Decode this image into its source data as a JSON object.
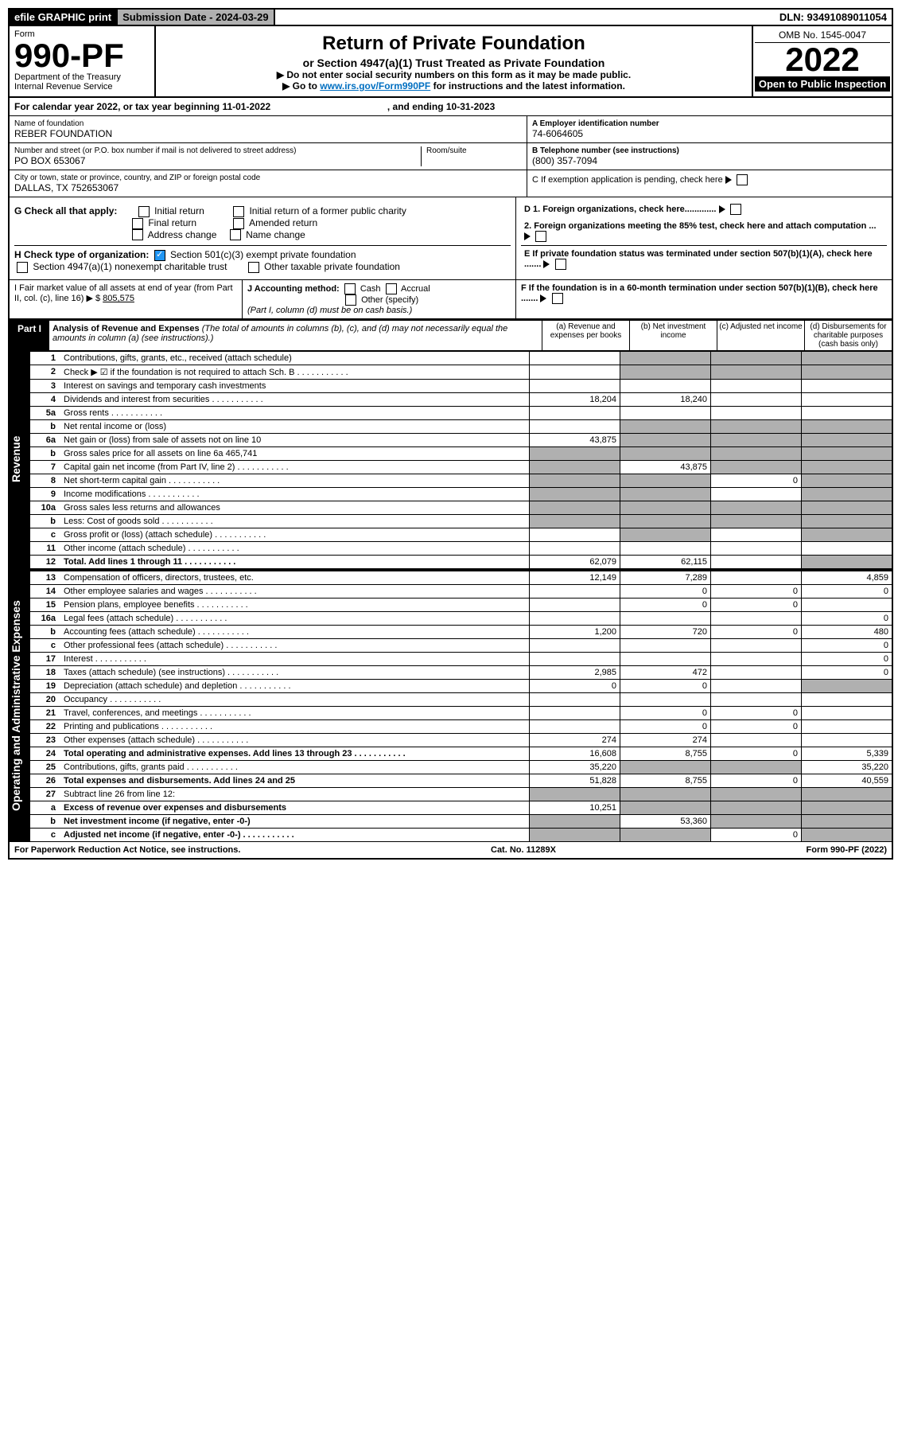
{
  "topbar": {
    "efile": "efile GRAPHIC print",
    "subdate": "Submission Date - 2024-03-29",
    "dln": "DLN: 93491089011054"
  },
  "header": {
    "form": "Form",
    "num": "990-PF",
    "dept": "Department of the Treasury",
    "irs": "Internal Revenue Service",
    "title": "Return of Private Foundation",
    "sub1": "or Section 4947(a)(1) Trust Treated as Private Foundation",
    "sub2": "▶ Do not enter social security numbers on this form as it may be made public.",
    "sub3": "▶ Go to ",
    "link": "www.irs.gov/Form990PF",
    "sub3b": " for instructions and the latest information.",
    "omb": "OMB No. 1545-0047",
    "year": "2022",
    "inspect": "Open to Public Inspection"
  },
  "ty": {
    "pre": "For calendar year 2022, or tax year beginning ",
    "begin": "11-01-2022",
    "mid": ", and ending ",
    "end": "10-31-2023"
  },
  "foundation": {
    "namelbl": "Name of foundation",
    "name": "REBER FOUNDATION",
    "addrlbl": "Number and street (or P.O. box number if mail is not delivered to street address)",
    "roomlbl": "Room/suite",
    "addr": "PO BOX 653067",
    "citylbl": "City or town, state or province, country, and ZIP or foreign postal code",
    "city": "DALLAS, TX  752653067",
    "einlbl": "A Employer identification number",
    "ein": "74-6064605",
    "tellbl": "B Telephone number (see instructions)",
    "tel": "(800) 357-7094",
    "clbl": "C If exemption application is pending, check here",
    "d1": "D 1. Foreign organizations, check here.............",
    "d2": "2. Foreign organizations meeting the 85% test, check here and attach computation ...",
    "e": "E If private foundation status was terminated under section 507(b)(1)(A), check here .......",
    "f": "F If the foundation is in a 60-month termination under section 507(b)(1)(B), check here ......."
  },
  "g": {
    "lbl": "G Check all that apply:",
    "opts": [
      "Initial return",
      "Initial return of a former public charity",
      "Final return",
      "Amended return",
      "Address change",
      "Name change"
    ]
  },
  "h": {
    "lbl": "H Check type of organization:",
    "o1": "Section 501(c)(3) exempt private foundation",
    "o2": "Section 4947(a)(1) nonexempt charitable trust",
    "o3": "Other taxable private foundation"
  },
  "i": {
    "lbl": "I Fair market value of all assets at end of year (from Part II, col. (c), line 16) ▶ $",
    "val": "805,575"
  },
  "j": {
    "lbl": "J Accounting method:",
    "o1": "Cash",
    "o2": "Accrual",
    "o3": "Other (specify)",
    "note": "(Part I, column (d) must be on cash basis.)"
  },
  "part1": {
    "hdr": "Part I",
    "title": "Analysis of Revenue and Expenses",
    "sub": "(The total of amounts in columns (b), (c), and (d) may not necessarily equal the amounts in column (a) (see instructions).)",
    "cols": [
      "(a) Revenue and expenses per books",
      "(b) Net investment income",
      "(c) Adjusted net income",
      "(d) Disbursements for charitable purposes (cash basis only)"
    ]
  },
  "sidelabels": {
    "rev": "Revenue",
    "exp": "Operating and Administrative Expenses"
  },
  "rows": [
    {
      "n": "1",
      "d": "Contributions, gifts, grants, etc., received (attach schedule)",
      "a": "",
      "b": "g",
      "c": "g",
      "e": "g"
    },
    {
      "n": "2",
      "d": "Check ▶ ☑ if the foundation is not required to attach Sch. B",
      "dots": 1,
      "b": "g",
      "c": "g",
      "e": "g"
    },
    {
      "n": "3",
      "d": "Interest on savings and temporary cash investments"
    },
    {
      "n": "4",
      "d": "Dividends and interest from securities",
      "dots": 1,
      "a": "18,204",
      "b": "18,240"
    },
    {
      "n": "5a",
      "d": "Gross rents",
      "dots": 1
    },
    {
      "n": "b",
      "d": "Net rental income or (loss)",
      "b": "g",
      "c": "g",
      "e": "g"
    },
    {
      "n": "6a",
      "d": "Net gain or (loss) from sale of assets not on line 10",
      "a": "43,875",
      "b": "g",
      "c": "g",
      "e": "g"
    },
    {
      "n": "b",
      "d": "Gross sales price for all assets on line 6a              465,741",
      "a": "g",
      "b": "g",
      "c": "g",
      "e": "g"
    },
    {
      "n": "7",
      "d": "Capital gain net income (from Part IV, line 2)",
      "dots": 1,
      "a": "g",
      "b": "43,875",
      "c": "g",
      "e": "g"
    },
    {
      "n": "8",
      "d": "Net short-term capital gain",
      "dots": 1,
      "a": "g",
      "b": "g",
      "c": "0",
      "e": "g"
    },
    {
      "n": "9",
      "d": "Income modifications",
      "dots": 1,
      "a": "g",
      "b": "g",
      "e": "g"
    },
    {
      "n": "10a",
      "d": "Gross sales less returns and allowances",
      "a": "g",
      "b": "g",
      "c": "g",
      "e": "g"
    },
    {
      "n": "b",
      "d": "Less: Cost of goods sold",
      "dots": 1,
      "a": "g",
      "b": "g",
      "c": "g",
      "e": "g"
    },
    {
      "n": "c",
      "d": "Gross profit or (loss) (attach schedule)",
      "dots": 1,
      "b": "g",
      "e": "g"
    },
    {
      "n": "11",
      "d": "Other income (attach schedule)",
      "dots": 1
    },
    {
      "n": "12",
      "d": "Total. Add lines 1 through 11",
      "dots": 1,
      "bold": 1,
      "a": "62,079",
      "b": "62,115",
      "e": "g"
    }
  ],
  "exprows": [
    {
      "n": "13",
      "d": "Compensation of officers, directors, trustees, etc.",
      "a": "12,149",
      "b": "7,289",
      "e": "4,859"
    },
    {
      "n": "14",
      "d": "Other employee salaries and wages",
      "dots": 1,
      "b": "0",
      "c": "0",
      "e": "0"
    },
    {
      "n": "15",
      "d": "Pension plans, employee benefits",
      "dots": 1,
      "b": "0",
      "c": "0"
    },
    {
      "n": "16a",
      "d": "Legal fees (attach schedule)",
      "dots": 1,
      "e": "0"
    },
    {
      "n": "b",
      "d": "Accounting fees (attach schedule)",
      "dots": 1,
      "a": "1,200",
      "b": "720",
      "c": "0",
      "e": "480"
    },
    {
      "n": "c",
      "d": "Other professional fees (attach schedule)",
      "dots": 1,
      "e": "0"
    },
    {
      "n": "17",
      "d": "Interest",
      "dots": 1,
      "e": "0"
    },
    {
      "n": "18",
      "d": "Taxes (attach schedule) (see instructions)",
      "dots": 1,
      "a": "2,985",
      "b": "472",
      "e": "0"
    },
    {
      "n": "19",
      "d": "Depreciation (attach schedule) and depletion",
      "dots": 1,
      "a": "0",
      "b": "0",
      "e": "g"
    },
    {
      "n": "20",
      "d": "Occupancy",
      "dots": 1
    },
    {
      "n": "21",
      "d": "Travel, conferences, and meetings",
      "dots": 1,
      "b": "0",
      "c": "0"
    },
    {
      "n": "22",
      "d": "Printing and publications",
      "dots": 1,
      "b": "0",
      "c": "0"
    },
    {
      "n": "23",
      "d": "Other expenses (attach schedule)",
      "dots": 1,
      "a": "274",
      "b": "274"
    },
    {
      "n": "24",
      "d": "Total operating and administrative expenses. Add lines 13 through 23",
      "dots": 1,
      "bold": 1,
      "a": "16,608",
      "b": "8,755",
      "c": "0",
      "e": "5,339"
    },
    {
      "n": "25",
      "d": "Contributions, gifts, grants paid",
      "dots": 1,
      "a": "35,220",
      "b": "g",
      "c": "g",
      "e": "35,220"
    },
    {
      "n": "26",
      "d": "Total expenses and disbursements. Add lines 24 and 25",
      "bold": 1,
      "a": "51,828",
      "b": "8,755",
      "c": "0",
      "e": "40,559"
    },
    {
      "n": "27",
      "d": "Subtract line 26 from line 12:",
      "a": "g",
      "b": "g",
      "c": "g",
      "e": "g"
    },
    {
      "n": "a",
      "d": "Excess of revenue over expenses and disbursements",
      "bold": 1,
      "a": "10,251",
      "b": "g",
      "c": "g",
      "e": "g"
    },
    {
      "n": "b",
      "d": "Net investment income (if negative, enter -0-)",
      "bold": 1,
      "a": "g",
      "b": "53,360",
      "c": "g",
      "e": "g"
    },
    {
      "n": "c",
      "d": "Adjusted net income (if negative, enter -0-)",
      "dots": 1,
      "bold": 1,
      "a": "g",
      "b": "g",
      "c": "0",
      "e": "g"
    }
  ],
  "footer": {
    "l": "For Paperwork Reduction Act Notice, see instructions.",
    "m": "Cat. No. 11289X",
    "r": "Form 990-PF (2022)"
  }
}
